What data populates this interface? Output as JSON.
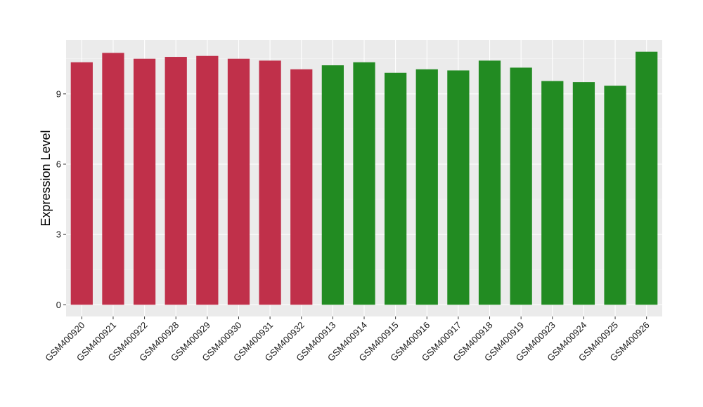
{
  "chart_data": {
    "type": "bar",
    "title": "",
    "xlabel": "",
    "ylabel": "Expression Level",
    "ylim": [
      -0.5,
      11.3
    ],
    "yticks": [
      0,
      3,
      6,
      9
    ],
    "grid": true,
    "legend": "none",
    "categories": [
      "GSM400920",
      "GSM400921",
      "GSM400922",
      "GSM400928",
      "GSM400929",
      "GSM400930",
      "GSM400931",
      "GSM400932",
      "GSM400913",
      "GSM400914",
      "GSM400915",
      "GSM400916",
      "GSM400917",
      "GSM400918",
      "GSM400919",
      "GSM400923",
      "GSM400924",
      "GSM400925",
      "GSM400926"
    ],
    "values": [
      10.35,
      10.75,
      10.5,
      10.58,
      10.62,
      10.5,
      10.42,
      10.05,
      10.22,
      10.35,
      9.9,
      10.05,
      10.0,
      10.42,
      10.12,
      9.55,
      9.5,
      9.35,
      10.8
    ],
    "bar_colors": [
      "#C0304A",
      "#C0304A",
      "#C0304A",
      "#C0304A",
      "#C0304A",
      "#C0304A",
      "#C0304A",
      "#C0304A",
      "#228B22",
      "#228B22",
      "#228B22",
      "#228B22",
      "#228B22",
      "#228B22",
      "#228B22",
      "#228B22",
      "#228B22",
      "#228B22",
      "#228B22"
    ],
    "colors": {
      "panel_background": "#EBEBEB",
      "grid_major": "#FFFFFF",
      "grid_minor": "#F5F5F5",
      "tick_mark": "#333333"
    }
  }
}
